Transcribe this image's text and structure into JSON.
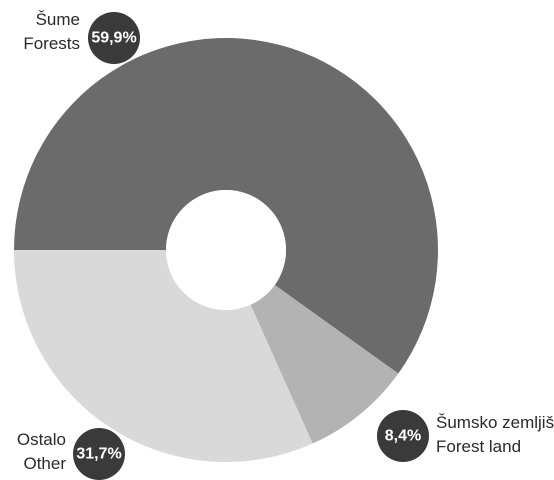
{
  "chart_data": {
    "type": "pie",
    "title": "",
    "categories": [
      "Šume Forests",
      "Šumsko zemljište Forest land",
      "Ostalo Other"
    ],
    "values": [
      59.9,
      8.4,
      31.7
    ],
    "slices": [
      {
        "label_line1": "Šume",
        "label_line2": "Forests",
        "value": 59.9,
        "pct_label": "59,9%",
        "color": "#6b6b6b"
      },
      {
        "label_line1": "Šumsko zemljište",
        "label_line2": "Forest land",
        "value": 8.4,
        "pct_label": "8,4%",
        "color": "#b3b3b3"
      },
      {
        "label_line1": "Ostalo",
        "label_line2": "Other",
        "value": 31.7,
        "pct_label": "31,7%",
        "color": "#d9d9d9"
      }
    ],
    "badge_color": "#3a3a3a",
    "donut": true,
    "legend": "none"
  }
}
